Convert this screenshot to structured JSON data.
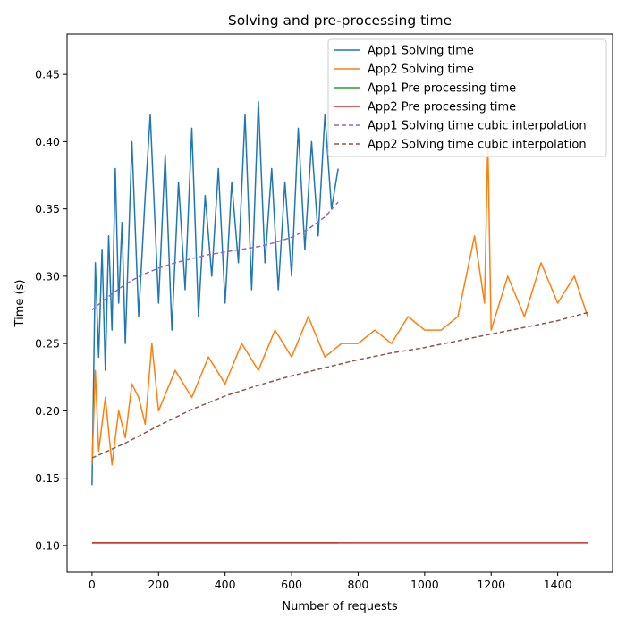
{
  "chart_data": {
    "type": "line",
    "title": "Solving and pre-processing time",
    "xlabel": "Number of requests",
    "ylabel": "Time (s)",
    "xlim": [
      -75,
      1565
    ],
    "ylim": [
      0.08,
      0.48
    ],
    "xticks": [
      0,
      200,
      400,
      600,
      800,
      1000,
      1200,
      1400
    ],
    "yticks": [
      0.1,
      0.15,
      0.2,
      0.25,
      0.3,
      0.35,
      0.4,
      0.45
    ],
    "ytick_labels": [
      "0.10",
      "0.15",
      "0.20",
      "0.25",
      "0.30",
      "0.35",
      "0.40",
      "0.45"
    ],
    "grid": false,
    "legend_position": "top-right",
    "series": [
      {
        "name": "App1 Solving time",
        "color": "#1f77b4",
        "style": "solid",
        "x": [
          0,
          10,
          20,
          30,
          40,
          50,
          60,
          70,
          80,
          90,
          100,
          120,
          140,
          160,
          175,
          200,
          220,
          240,
          260,
          280,
          300,
          320,
          340,
          360,
          380,
          400,
          420,
          440,
          460,
          480,
          500,
          520,
          540,
          560,
          580,
          600,
          620,
          640,
          660,
          680,
          700,
          720,
          740
        ],
        "y": [
          0.145,
          0.31,
          0.24,
          0.32,
          0.23,
          0.33,
          0.26,
          0.38,
          0.28,
          0.34,
          0.25,
          0.4,
          0.27,
          0.36,
          0.42,
          0.28,
          0.39,
          0.26,
          0.37,
          0.29,
          0.41,
          0.27,
          0.36,
          0.3,
          0.38,
          0.28,
          0.37,
          0.31,
          0.42,
          0.29,
          0.43,
          0.31,
          0.38,
          0.29,
          0.37,
          0.3,
          0.41,
          0.32,
          0.4,
          0.33,
          0.42,
          0.35,
          0.38
        ]
      },
      {
        "name": "App2 Solving time",
        "color": "#ff7f0e",
        "style": "solid",
        "x": [
          0,
          10,
          20,
          40,
          60,
          80,
          100,
          120,
          140,
          160,
          180,
          200,
          250,
          300,
          350,
          400,
          450,
          500,
          550,
          600,
          650,
          700,
          750,
          800,
          850,
          900,
          950,
          1000,
          1050,
          1100,
          1150,
          1180,
          1190,
          1200,
          1250,
          1300,
          1350,
          1400,
          1450,
          1490
        ],
        "y": [
          0.16,
          0.23,
          0.17,
          0.21,
          0.16,
          0.2,
          0.18,
          0.22,
          0.21,
          0.19,
          0.25,
          0.2,
          0.23,
          0.21,
          0.24,
          0.22,
          0.25,
          0.23,
          0.26,
          0.24,
          0.27,
          0.24,
          0.25,
          0.25,
          0.26,
          0.25,
          0.27,
          0.26,
          0.26,
          0.27,
          0.33,
          0.28,
          0.4,
          0.26,
          0.3,
          0.27,
          0.31,
          0.28,
          0.3,
          0.27
        ]
      },
      {
        "name": "App1 Pre processing time",
        "color": "#2ca02c",
        "style": "solid",
        "x": [
          0,
          740
        ],
        "y": [
          0.102,
          0.102
        ]
      },
      {
        "name": "App2 Pre processing time",
        "color": "#d62728",
        "style": "solid",
        "x": [
          0,
          1490
        ],
        "y": [
          0.102,
          0.102
        ]
      },
      {
        "name": "App1 Solving time cubic interpolation",
        "color": "#9467bd",
        "style": "dashed",
        "x": [
          0,
          50,
          100,
          150,
          200,
          250,
          300,
          350,
          400,
          450,
          500,
          550,
          600,
          650,
          700,
          740
        ],
        "y": [
          0.275,
          0.285,
          0.294,
          0.301,
          0.306,
          0.31,
          0.313,
          0.316,
          0.318,
          0.32,
          0.322,
          0.325,
          0.329,
          0.335,
          0.344,
          0.355
        ]
      },
      {
        "name": "App2 Solving time cubic interpolation",
        "color": "#8c564b",
        "style": "dashed",
        "x": [
          0,
          100,
          200,
          300,
          400,
          500,
          600,
          700,
          800,
          900,
          1000,
          1100,
          1200,
          1300,
          1400,
          1490
        ],
        "y": [
          0.165,
          0.176,
          0.189,
          0.201,
          0.211,
          0.219,
          0.226,
          0.232,
          0.238,
          0.243,
          0.247,
          0.252,
          0.257,
          0.262,
          0.267,
          0.273
        ]
      }
    ]
  }
}
